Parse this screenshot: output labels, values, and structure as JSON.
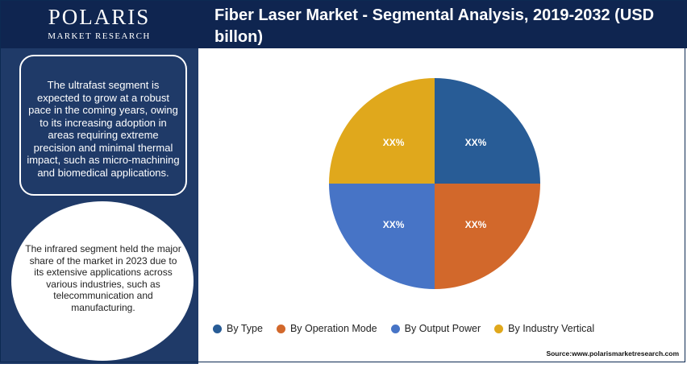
{
  "brand": {
    "name": "POLARIS",
    "subtitle": "MARKET RESEARCH"
  },
  "title": "Fiber Laser Market - Segmental Analysis, 2019-2032 (USD billon)",
  "insights": {
    "box_text": "The ultrafast segment is expected to grow at a robust pace in the coming years, owing to its increasing adoption in areas requiring extreme precision and minimal thermal impact, such as micro-machining and biomedical applications.",
    "circle_text": "The infrared segment held the major share of the market in 2023 due to its extensive applications across various industries, such as telecommunication and manufacturing."
  },
  "source": "Source:www.polarismarketresearch.com",
  "chart_data": {
    "type": "pie",
    "series": [
      {
        "name": "By Type",
        "value": 25,
        "label": "XX%",
        "color": "#285c96"
      },
      {
        "name": "By Operation Mode",
        "value": 25,
        "label": "XX%",
        "color": "#d2682b"
      },
      {
        "name": "By Output Power",
        "value": 25,
        "label": "XX%",
        "color": "#4774c6"
      },
      {
        "name": "By Industry Vertical",
        "value": 25,
        "label": "XX%",
        "color": "#e0a81c"
      }
    ],
    "legend_position": "bottom"
  }
}
